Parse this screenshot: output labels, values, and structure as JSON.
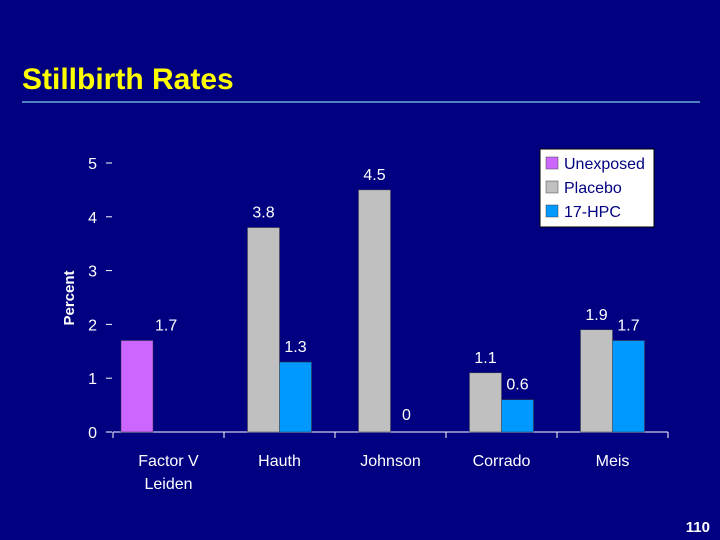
{
  "slide": {
    "title": "Stillbirth Rates",
    "page_number": "110"
  },
  "chart_data": {
    "type": "bar",
    "ylabel": "Percent",
    "xlabel": "",
    "ylim": [
      0,
      5
    ],
    "yticks": [
      0,
      1,
      2,
      3,
      4,
      5
    ],
    "categories": [
      "Factor V\nLeiden",
      "Hauth",
      "Johnson",
      "Corrado",
      "Meis"
    ],
    "series": [
      {
        "name": "Unexposed",
        "color": "#CC66FF",
        "values": [
          1.7,
          null,
          null,
          null,
          null
        ],
        "labels": [
          "1.7",
          "",
          "",
          "",
          ""
        ]
      },
      {
        "name": "Placebo",
        "color": "#C0C0C0",
        "values": [
          null,
          3.8,
          4.5,
          1.1,
          1.9
        ],
        "labels": [
          "",
          "3.8",
          "4.5",
          "1.1",
          "1.9"
        ]
      },
      {
        "name": "17-HPC",
        "color": "#0099FF",
        "values": [
          null,
          1.3,
          0,
          0.6,
          1.7
        ],
        "labels": [
          "",
          "1.3",
          "0",
          "0.6",
          "1.7"
        ]
      }
    ],
    "legend_position": "top-right",
    "grid": false
  }
}
